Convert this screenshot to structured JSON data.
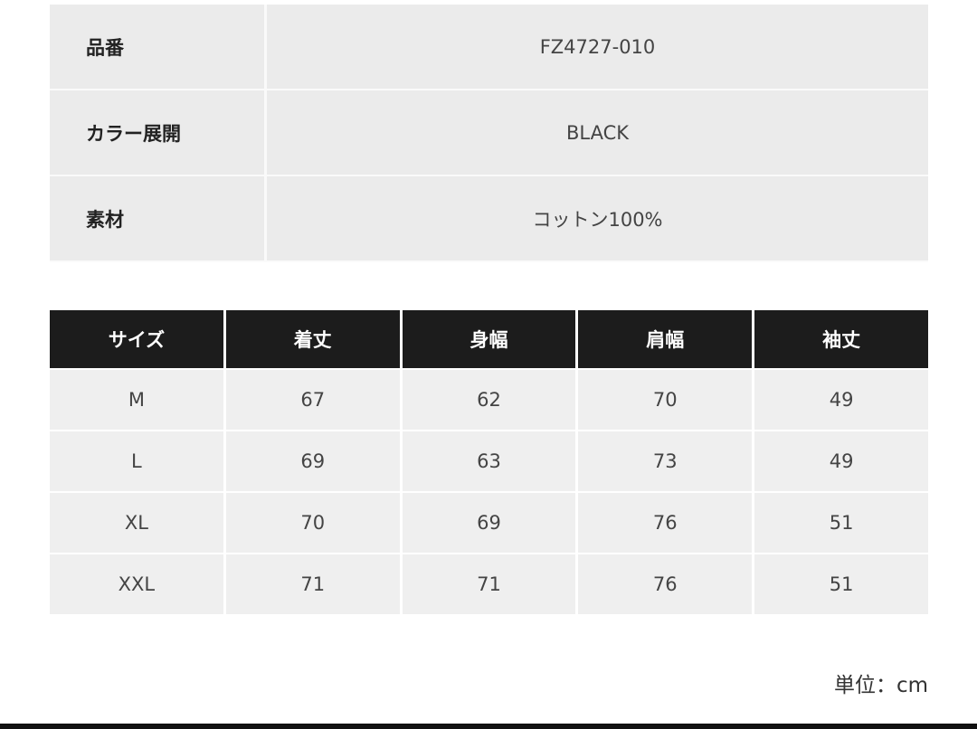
{
  "specs": [
    {
      "label": "品番",
      "value": "FZ4727-010"
    },
    {
      "label": "カラー展開",
      "value": "BLACK"
    },
    {
      "label": "素材",
      "value": "コットン100%"
    }
  ],
  "size_table": {
    "headers": [
      "サイズ",
      "着丈",
      "身幅",
      "肩幅",
      "袖丈"
    ],
    "rows": [
      [
        "M",
        "67",
        "62",
        "70",
        "49"
      ],
      [
        "L",
        "69",
        "63",
        "73",
        "49"
      ],
      [
        "XL",
        "70",
        "69",
        "76",
        "51"
      ],
      [
        "XXL",
        "71",
        "71",
        "76",
        "51"
      ]
    ]
  },
  "unit_note": "単位：cm"
}
